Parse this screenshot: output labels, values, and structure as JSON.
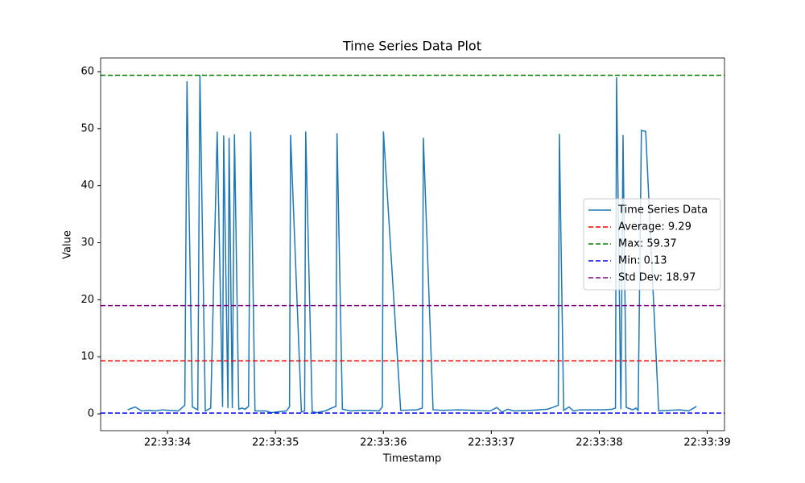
{
  "chart_data": {
    "type": "line",
    "title": "Time Series Data Plot",
    "x_label": "Timestamp",
    "y_label": "Value",
    "x": [
      33.63,
      33.7,
      33.76,
      33.83,
      33.89,
      33.95,
      34.01,
      34.1,
      34.16,
      34.18,
      34.23,
      34.28,
      34.3,
      34.35,
      34.4,
      34.46,
      34.51,
      34.52,
      34.56,
      34.57,
      34.6,
      34.62,
      34.66,
      34.69,
      34.72,
      34.75,
      34.77,
      34.81,
      34.91,
      34.96,
      35.04,
      35.1,
      35.13,
      35.14,
      35.24,
      35.27,
      35.28,
      35.34,
      35.38,
      35.46,
      35.52,
      35.56,
      35.57,
      35.62,
      35.7,
      35.78,
      35.87,
      35.96,
      35.99,
      36.0,
      36.16,
      36.31,
      36.36,
      36.37,
      36.46,
      36.55,
      36.7,
      36.85,
      36.99,
      37.05,
      37.1,
      37.15,
      37.21,
      37.37,
      37.52,
      37.58,
      37.62,
      37.63,
      37.67,
      37.72,
      37.76,
      37.82,
      37.93,
      38.04,
      38.12,
      38.15,
      38.16,
      38.2,
      38.22,
      38.25,
      38.31,
      38.34,
      38.36,
      38.39,
      38.43,
      38.55,
      38.64,
      38.75,
      38.83,
      38.9
    ],
    "series": [
      {
        "name": "Time Series Data",
        "color": "#1f77b4",
        "values": [
          0.7,
          1.2,
          0.5,
          0.6,
          0.5,
          0.7,
          0.6,
          0.5,
          1.5,
          58.3,
          1.2,
          0.7,
          59.4,
          0.5,
          1.0,
          49.5,
          1.2,
          48.8,
          1.0,
          48.4,
          1.0,
          49.0,
          0.8,
          1.0,
          0.8,
          1.3,
          49.5,
          0.5,
          0.5,
          0.2,
          0.4,
          0.5,
          1.2,
          48.9,
          0.3,
          0.5,
          49.5,
          0.4,
          0.2,
          0.5,
          1.0,
          1.3,
          49.2,
          0.8,
          0.5,
          0.6,
          0.6,
          0.5,
          1.2,
          49.5,
          0.6,
          0.7,
          1.0,
          48.4,
          0.7,
          0.6,
          0.7,
          0.6,
          0.5,
          1.1,
          0.3,
          0.8,
          0.5,
          0.6,
          0.8,
          1.2,
          1.5,
          49.1,
          0.6,
          1.2,
          0.5,
          0.7,
          0.7,
          0.7,
          0.8,
          1.0,
          59.0,
          0.8,
          48.9,
          1.1,
          0.7,
          1.0,
          0.6,
          49.7,
          49.5,
          0.5,
          0.6,
          0.7,
          0.5,
          1.3
        ]
      }
    ],
    "hlines": [
      {
        "name": "Average: 9.29",
        "value": 9.29,
        "color": "#ff0000"
      },
      {
        "name": "Max: 59.37",
        "value": 59.37,
        "color": "#008000"
      },
      {
        "name": "Min: 0.13",
        "value": 0.13,
        "color": "#0000ff"
      },
      {
        "name": "Std Dev: 18.97",
        "value": 18.97,
        "color": "#800080"
      }
    ],
    "xlim": [
      33.38,
      39.16
    ],
    "ylim": [
      -2.96,
      62.4
    ],
    "xticks": [
      {
        "value": 34,
        "label": "22:33:34"
      },
      {
        "value": 35,
        "label": "22:33:35"
      },
      {
        "value": 36,
        "label": "22:33:36"
      },
      {
        "value": 37,
        "label": "22:33:37"
      },
      {
        "value": 38,
        "label": "22:33:38"
      },
      {
        "value": 39,
        "label": "22:33:39"
      }
    ],
    "yticks": [
      0,
      10,
      20,
      30,
      40,
      50,
      60
    ],
    "legend": "center right"
  }
}
